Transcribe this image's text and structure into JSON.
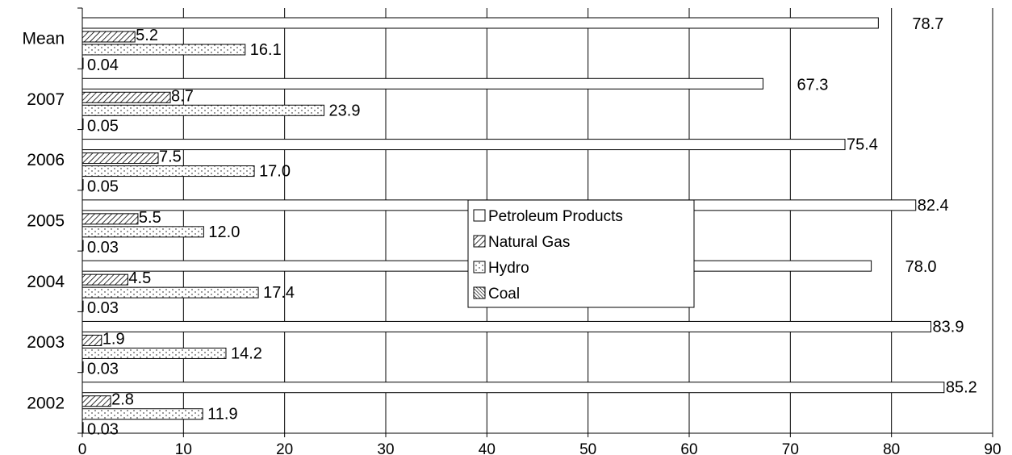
{
  "chart_data": {
    "type": "bar",
    "orientation": "horizontal",
    "categories": [
      "Mean",
      "2007",
      "2006",
      "2005",
      "2004",
      "2003",
      "2002"
    ],
    "series": [
      {
        "name": "Petroleum Products",
        "pattern": "none",
        "values": [
          78.7,
          67.3,
          75.4,
          82.4,
          78.0,
          83.9,
          85.2
        ],
        "labels": [
          "78.7",
          "67.3",
          "75.4",
          "82.4",
          "78.0",
          "83.9",
          "85.2"
        ]
      },
      {
        "name": "Natural Gas",
        "pattern": "diagonal-hatch",
        "values": [
          5.2,
          8.7,
          7.5,
          5.5,
          4.5,
          1.9,
          2.8
        ],
        "labels": [
          "5.2",
          "8.7",
          "7.5",
          "5.5",
          "4.5",
          "1.9",
          "2.8"
        ]
      },
      {
        "name": "Hydro",
        "pattern": "dots",
        "values": [
          16.1,
          23.9,
          17.0,
          12.0,
          17.4,
          14.2,
          11.9
        ],
        "labels": [
          "16.1",
          "23.9",
          "17.0",
          "12.0",
          "17.4",
          "14.2",
          "11.9"
        ]
      },
      {
        "name": "Coal",
        "pattern": "dense-hatch",
        "values": [
          0.04,
          0.05,
          0.05,
          0.03,
          0.03,
          0.03,
          0.03
        ],
        "labels": [
          "0.04",
          "0.05",
          "0.05",
          "0.03",
          "0.03",
          "0.03",
          "0.03"
        ]
      }
    ],
    "xlim": [
      0,
      90
    ],
    "xticks": [
      "0",
      "10",
      "20",
      "30",
      "40",
      "50",
      "60",
      "70",
      "80",
      "90"
    ],
    "grid": "vertical",
    "legend_position": "center",
    "colors": {
      "bar_fill": "#ffffff",
      "stroke": "#000000",
      "background": "#ffffff"
    }
  }
}
